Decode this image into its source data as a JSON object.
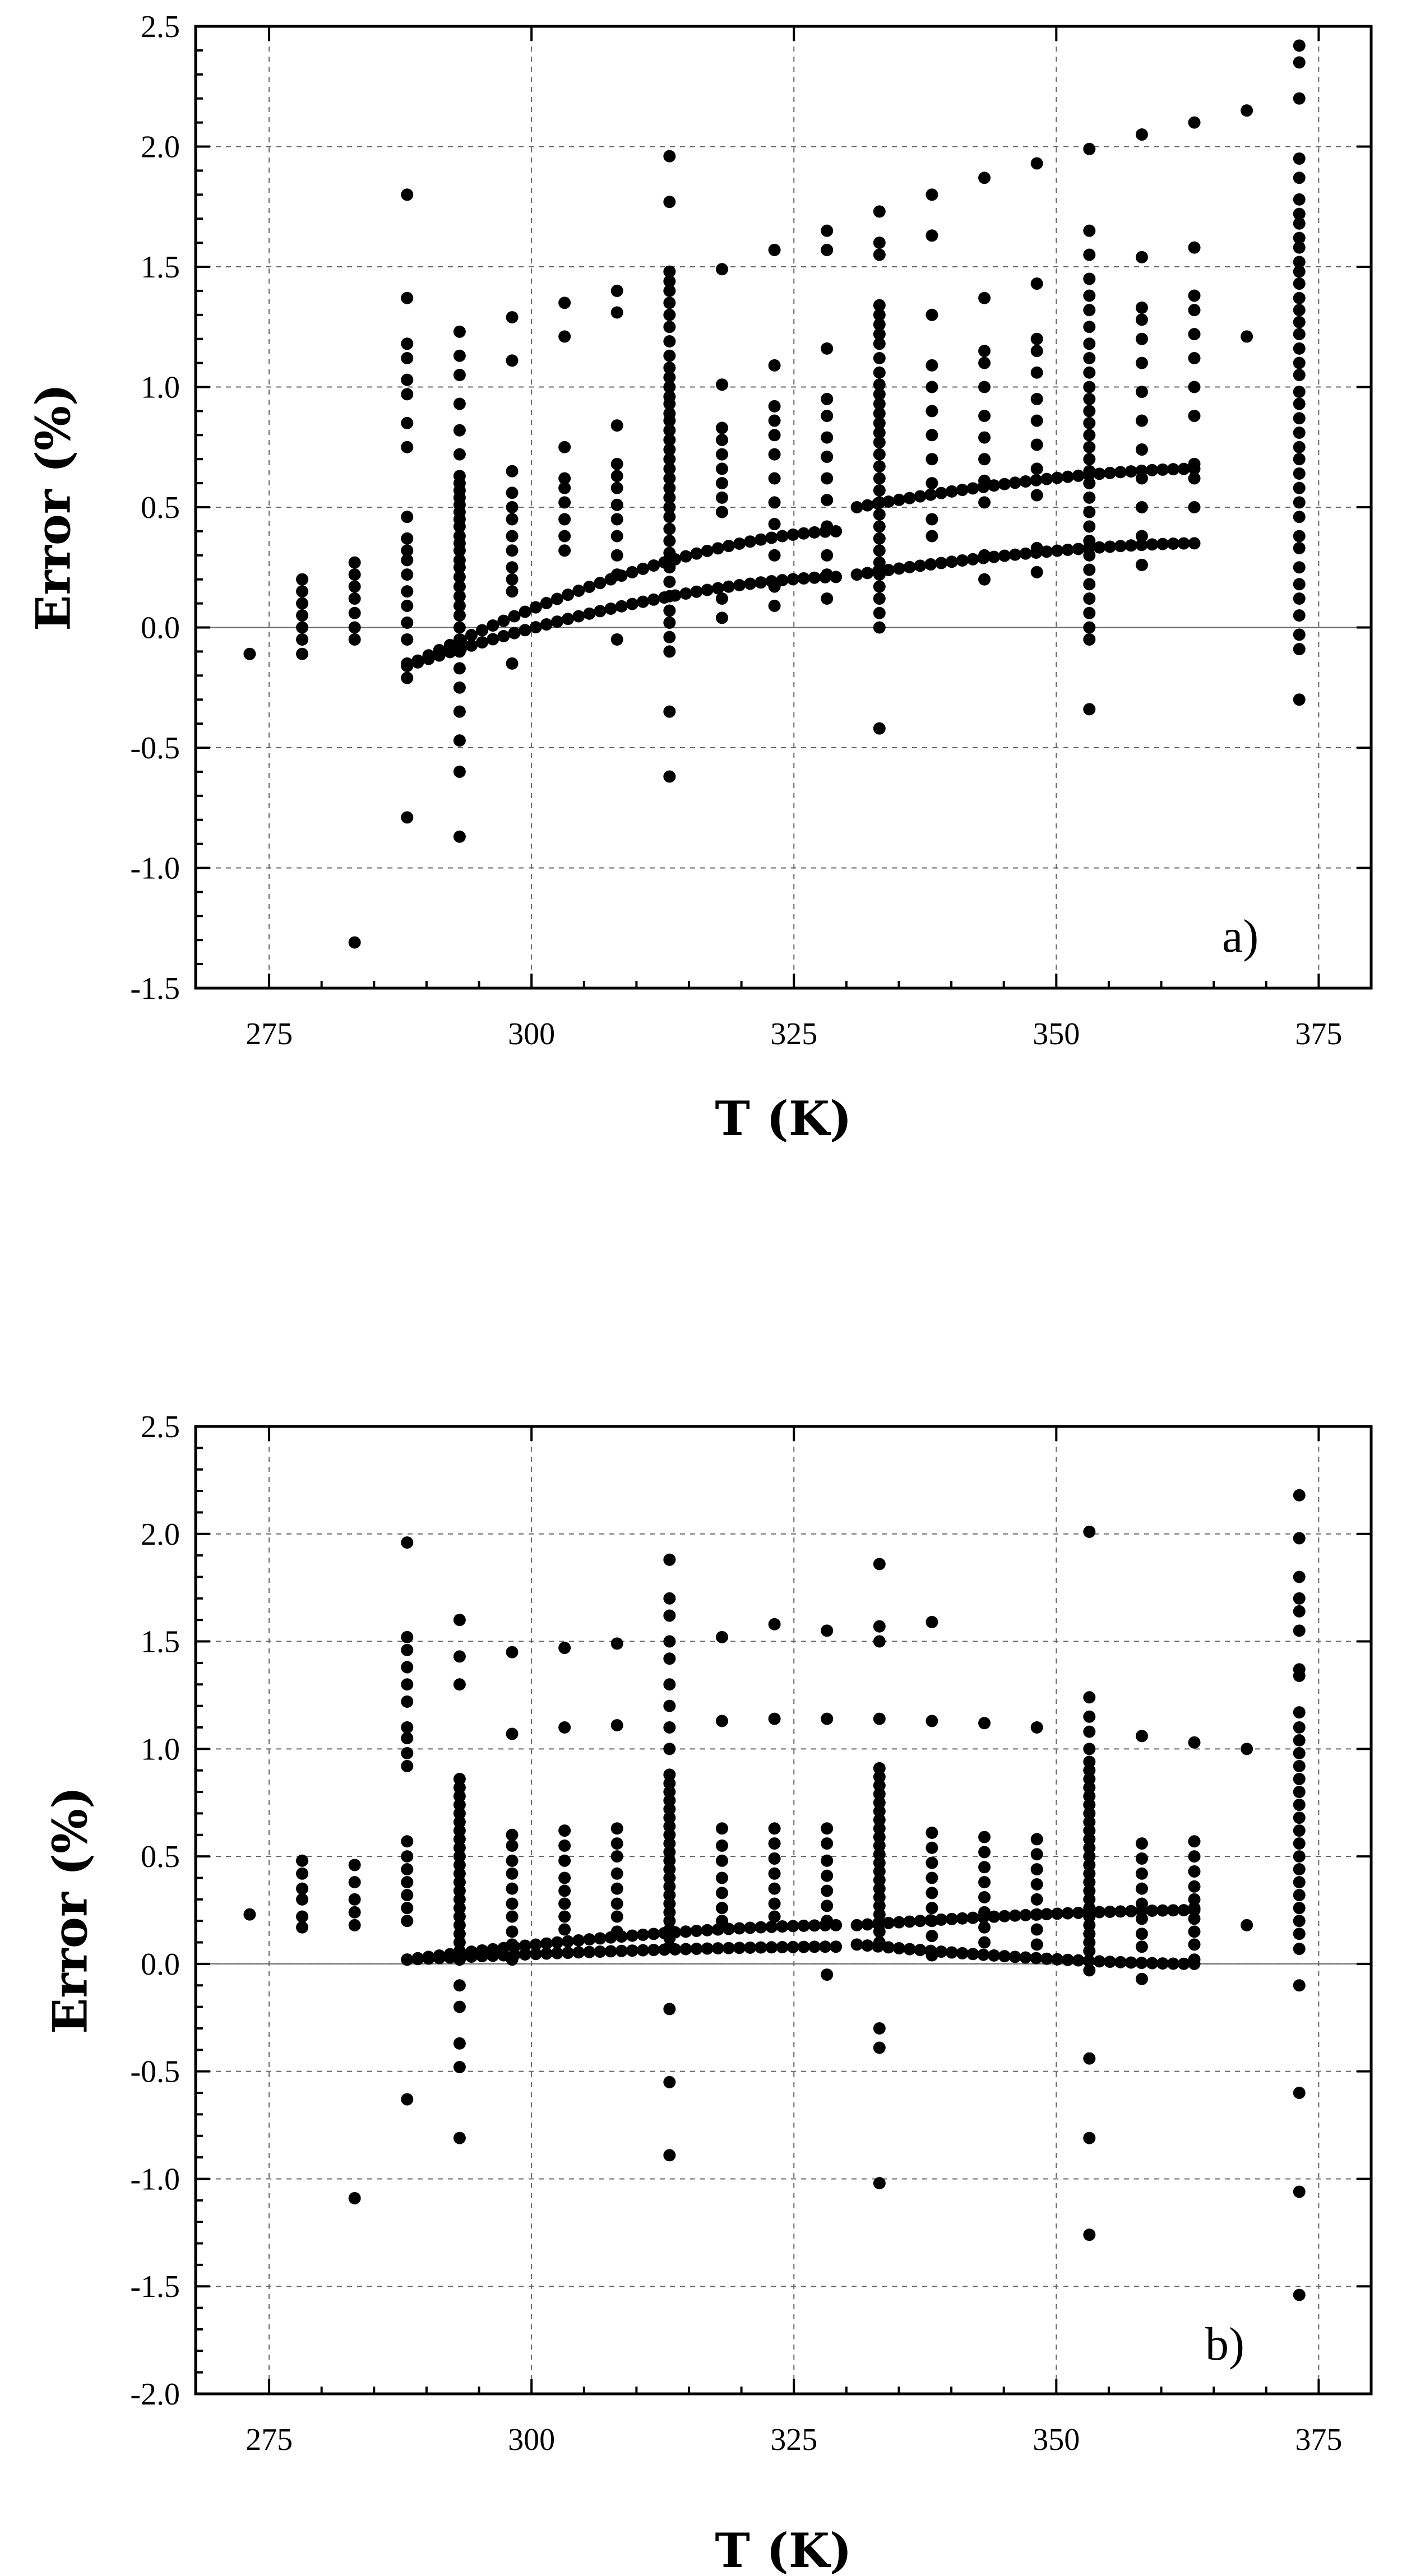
{
  "chart_data": [
    {
      "type": "scatter",
      "panel_label": "a)",
      "title": "",
      "xlabel": "T (K)",
      "ylabel": "Error (%)",
      "xlim": [
        268,
        380
      ],
      "ylim": [
        -1.5,
        2.5
      ],
      "xticks": [
        275,
        300,
        325,
        350,
        375
      ],
      "xtick_labels": [
        "275",
        "300",
        "325",
        "350",
        "375"
      ],
      "yticks": [
        -1.5,
        -1.0,
        -0.5,
        0.0,
        0.5,
        1.0,
        1.5,
        2.0,
        2.5
      ],
      "ytick_labels": [
        "-1.5",
        "-1.0",
        "-0.5",
        "0.0",
        "0.5",
        "1.0",
        "1.5",
        "2.0",
        "2.5"
      ],
      "grid": true,
      "zero_line": true,
      "columns": [
        {
          "x": 273.15,
          "y": [
            -0.11
          ]
        },
        {
          "x": 278.15,
          "y": [
            0.2,
            0.15,
            0.1,
            0.05,
            0.0,
            -0.05,
            -0.11
          ]
        },
        {
          "x": 283.15,
          "y": [
            0.27,
            0.22,
            0.17,
            0.12,
            0.06,
            0.0,
            -0.05,
            -1.31
          ]
        },
        {
          "x": 288.15,
          "y": [
            1.8,
            1.37,
            1.18,
            1.12,
            1.03,
            0.97,
            0.85,
            0.75,
            0.46,
            0.37,
            0.32,
            0.28,
            0.22,
            0.15,
            0.09,
            0.02,
            -0.05,
            -0.15,
            -0.21,
            -0.79
          ]
        },
        {
          "x": 293.15,
          "y": [
            1.23,
            1.13,
            1.05,
            0.93,
            0.82,
            0.72,
            0.63,
            0.6,
            0.57,
            0.54,
            0.51,
            0.48,
            0.45,
            0.42,
            0.38,
            0.35,
            0.32,
            0.28,
            0.25,
            0.21,
            0.17,
            0.13,
            0.09,
            0.05,
            0.0,
            -0.05,
            -0.1,
            -0.17,
            -0.25,
            -0.35,
            -0.47,
            -0.6,
            -0.87
          ]
        },
        {
          "x": 298.15,
          "y": [
            1.29,
            1.11,
            0.65,
            0.56,
            0.5,
            0.45,
            0.38,
            0.32,
            0.25,
            0.2,
            0.15,
            -0.15
          ]
        },
        {
          "x": 303.15,
          "y": [
            1.35,
            1.21,
            0.75,
            0.62,
            0.58,
            0.52,
            0.45,
            0.38,
            0.32
          ]
        },
        {
          "x": 308.15,
          "y": [
            1.4,
            1.31,
            0.84,
            0.68,
            0.63,
            0.58,
            0.51,
            0.45,
            0.38,
            0.3,
            0.22,
            -0.05
          ]
        },
        {
          "x": 313.15,
          "y": [
            1.96,
            1.77,
            1.48,
            1.44,
            1.4,
            1.35,
            1.3,
            1.25,
            1.19,
            1.13,
            1.08,
            1.04,
            1.0,
            0.96,
            0.93,
            0.89,
            0.86,
            0.82,
            0.78,
            0.74,
            0.7,
            0.66,
            0.62,
            0.58,
            0.54,
            0.5,
            0.46,
            0.41,
            0.36,
            0.31,
            0.25,
            0.19,
            0.13,
            0.07,
            0.02,
            -0.04,
            -0.1,
            -0.35,
            -0.62
          ]
        },
        {
          "x": 318.15,
          "y": [
            1.49,
            1.01,
            0.83,
            0.78,
            0.72,
            0.66,
            0.6,
            0.54,
            0.48,
            0.12,
            0.04
          ]
        },
        {
          "x": 323.15,
          "y": [
            1.57,
            1.09,
            0.92,
            0.86,
            0.8,
            0.72,
            0.62,
            0.52,
            0.43,
            0.3,
            0.17,
            0.09
          ]
        },
        {
          "x": 328.15,
          "y": [
            1.65,
            1.57,
            1.16,
            0.95,
            0.88,
            0.79,
            0.71,
            0.62,
            0.53,
            0.42,
            0.3,
            0.22,
            0.12
          ]
        },
        {
          "x": 333.15,
          "y": [
            1.73,
            1.6,
            1.55,
            1.34,
            1.3,
            1.26,
            1.22,
            1.18,
            1.12,
            1.06,
            1.01,
            0.97,
            0.93,
            0.89,
            0.85,
            0.81,
            0.77,
            0.72,
            0.67,
            0.62,
            0.57,
            0.52,
            0.47,
            0.42,
            0.37,
            0.32,
            0.27,
            0.22,
            0.17,
            0.12,
            0.06,
            0.0,
            -0.42
          ]
        },
        {
          "x": 338.15,
          "y": [
            1.8,
            1.63,
            1.3,
            1.09,
            1.0,
            0.9,
            0.8,
            0.7,
            0.6,
            0.45,
            0.38
          ]
        },
        {
          "x": 343.15,
          "y": [
            1.87,
            1.37,
            1.15,
            1.1,
            1.0,
            0.88,
            0.79,
            0.7,
            0.61,
            0.52,
            0.3,
            0.2
          ]
        },
        {
          "x": 348.15,
          "y": [
            1.93,
            1.43,
            1.2,
            1.15,
            1.06,
            0.95,
            0.86,
            0.76,
            0.66,
            0.55,
            0.33,
            0.23
          ]
        },
        {
          "x": 353.15,
          "y": [
            1.99,
            1.65,
            1.55,
            1.45,
            1.38,
            1.32,
            1.25,
            1.18,
            1.12,
            1.06,
            1.0,
            0.95,
            0.9,
            0.85,
            0.8,
            0.75,
            0.7,
            0.65,
            0.6,
            0.54,
            0.48,
            0.42,
            0.36,
            0.3,
            0.24,
            0.18,
            0.12,
            0.06,
            0.0,
            -0.05,
            -0.34
          ]
        },
        {
          "x": 358.15,
          "y": [
            2.05,
            1.54,
            1.33,
            1.28,
            1.2,
            1.1,
            0.98,
            0.86,
            0.74,
            0.62,
            0.5,
            0.38,
            0.26
          ]
        },
        {
          "x": 363.15,
          "y": [
            2.1,
            1.58,
            1.38,
            1.32,
            1.22,
            1.12,
            1.0,
            0.88,
            0.68,
            0.62,
            0.5
          ]
        },
        {
          "x": 368.15,
          "y": [
            2.15,
            1.21
          ]
        },
        {
          "x": 373.15,
          "y": [
            2.42,
            2.35,
            2.2,
            1.95,
            1.87,
            1.78,
            1.72,
            1.68,
            1.62,
            1.58,
            1.52,
            1.48,
            1.43,
            1.37,
            1.32,
            1.27,
            1.22,
            1.16,
            1.1,
            1.05,
            0.98,
            0.93,
            0.87,
            0.81,
            0.75,
            0.7,
            0.64,
            0.58,
            0.52,
            0.46,
            0.38,
            0.33,
            0.25,
            0.18,
            0.12,
            0.05,
            -0.03,
            -0.09,
            -0.3
          ]
        }
      ],
      "curves": [
        {
          "name": "upper-curve-1",
          "x_start": 288.15,
          "x_end": 329.0,
          "y_start": -0.16,
          "y_end": 0.4
        },
        {
          "name": "lower-curve-1",
          "x_start": 288.15,
          "x_end": 329.0,
          "y_start": -0.16,
          "y_end": 0.21
        },
        {
          "name": "upper-curve-2",
          "x_start": 331.0,
          "x_end": 363.15,
          "y_start": 0.5,
          "y_end": 0.66
        },
        {
          "name": "lower-curve-2",
          "x_start": 331.0,
          "x_end": 363.15,
          "y_start": 0.22,
          "y_end": 0.35
        }
      ]
    },
    {
      "type": "scatter",
      "panel_label": "b)",
      "title": "",
      "xlabel": "T (K)",
      "ylabel": "Error (%)",
      "xlim": [
        268,
        380
      ],
      "ylim": [
        -2.0,
        2.5
      ],
      "xticks": [
        275,
        300,
        325,
        350,
        375
      ],
      "xtick_labels": [
        "275",
        "300",
        "325",
        "350",
        "375"
      ],
      "yticks": [
        -2.0,
        -1.5,
        -1.0,
        -0.5,
        0.0,
        0.5,
        1.0,
        1.5,
        2.0,
        2.5
      ],
      "ytick_labels": [
        "-2.0",
        "-1.5",
        "-1.0",
        "-0.5",
        "0.0",
        "0.5",
        "1.0",
        "1.5",
        "2.0",
        "2.5"
      ],
      "grid": true,
      "zero_line": true,
      "columns": [
        {
          "x": 273.15,
          "y": [
            0.23
          ]
        },
        {
          "x": 278.15,
          "y": [
            0.48,
            0.42,
            0.35,
            0.3,
            0.22,
            0.17
          ]
        },
        {
          "x": 283.15,
          "y": [
            0.46,
            0.38,
            0.3,
            0.24,
            0.18,
            -1.09
          ]
        },
        {
          "x": 288.15,
          "y": [
            1.96,
            1.52,
            1.46,
            1.38,
            1.3,
            1.22,
            1.1,
            1.05,
            0.98,
            0.92,
            0.57,
            0.5,
            0.44,
            0.38,
            0.32,
            0.26,
            0.2,
            -0.63
          ]
        },
        {
          "x": 293.15,
          "y": [
            1.6,
            1.43,
            1.3,
            0.86,
            0.82,
            0.78,
            0.74,
            0.7,
            0.66,
            0.62,
            0.58,
            0.54,
            0.5,
            0.46,
            0.42,
            0.38,
            0.34,
            0.3,
            0.26,
            0.22,
            0.18,
            0.14,
            0.1,
            0.06,
            0.02,
            -0.1,
            -0.2,
            -0.37,
            -0.48,
            -0.81
          ]
        },
        {
          "x": 298.15,
          "y": [
            1.45,
            1.07,
            0.6,
            0.55,
            0.48,
            0.42,
            0.35,
            0.28,
            0.22,
            0.15,
            0.09,
            0.02
          ]
        },
        {
          "x": 303.15,
          "y": [
            1.47,
            1.1,
            0.62,
            0.55,
            0.48,
            0.4,
            0.34,
            0.28,
            0.22,
            0.16
          ]
        },
        {
          "x": 308.15,
          "y": [
            1.49,
            1.11,
            0.63,
            0.56,
            0.5,
            0.42,
            0.35,
            0.28,
            0.22,
            0.15
          ]
        },
        {
          "x": 313.15,
          "y": [
            1.88,
            1.7,
            1.62,
            1.5,
            1.42,
            1.3,
            1.2,
            1.1,
            1.0,
            0.88,
            0.84,
            0.8,
            0.76,
            0.72,
            0.68,
            0.64,
            0.6,
            0.56,
            0.52,
            0.48,
            0.44,
            0.4,
            0.36,
            0.32,
            0.28,
            0.24,
            0.2,
            0.16,
            0.12,
            0.08,
            -0.21,
            -0.55,
            -0.89
          ]
        },
        {
          "x": 318.15,
          "y": [
            1.52,
            1.13,
            0.63,
            0.55,
            0.48,
            0.4,
            0.33,
            0.26,
            0.2
          ]
        },
        {
          "x": 323.15,
          "y": [
            1.58,
            1.14,
            0.63,
            0.56,
            0.49,
            0.42,
            0.35,
            0.28,
            0.22
          ]
        },
        {
          "x": 328.15,
          "y": [
            1.55,
            1.14,
            0.63,
            0.56,
            0.48,
            0.41,
            0.34,
            0.27,
            0.2,
            -0.05
          ]
        },
        {
          "x": 333.15,
          "y": [
            1.86,
            1.57,
            1.5,
            1.14,
            0.91,
            0.87,
            0.83,
            0.79,
            0.75,
            0.71,
            0.67,
            0.63,
            0.59,
            0.55,
            0.51,
            0.47,
            0.43,
            0.39,
            0.35,
            0.31,
            0.27,
            0.23,
            0.19,
            0.15,
            0.1,
            -0.3,
            -0.39,
            -1.02
          ]
        },
        {
          "x": 338.15,
          "y": [
            1.59,
            1.13,
            0.61,
            0.54,
            0.47,
            0.4,
            0.33,
            0.26,
            0.2,
            0.13,
            0.04
          ]
        },
        {
          "x": 343.15,
          "y": [
            1.12,
            0.59,
            0.52,
            0.45,
            0.38,
            0.31,
            0.24,
            0.17,
            0.1
          ]
        },
        {
          "x": 348.15,
          "y": [
            1.1,
            0.58,
            0.51,
            0.44,
            0.37,
            0.3,
            0.23,
            0.16,
            0.09
          ]
        },
        {
          "x": 353.15,
          "y": [
            2.01,
            1.24,
            1.15,
            1.08,
            1.0,
            0.94,
            0.9,
            0.86,
            0.82,
            0.78,
            0.74,
            0.7,
            0.66,
            0.62,
            0.58,
            0.54,
            0.5,
            0.46,
            0.42,
            0.38,
            0.34,
            0.3,
            0.26,
            0.22,
            0.18,
            0.14,
            0.1,
            0.06,
            -0.03,
            -0.44,
            -0.81,
            -1.26
          ]
        },
        {
          "x": 358.15,
          "y": [
            1.06,
            0.56,
            0.49,
            0.42,
            0.35,
            0.28,
            0.21,
            0.14,
            0.08,
            -0.07
          ]
        },
        {
          "x": 363.15,
          "y": [
            1.03,
            0.57,
            0.5,
            0.43,
            0.36,
            0.3,
            0.26,
            0.21,
            0.15,
            0.09,
            0.02
          ]
        },
        {
          "x": 368.15,
          "y": [
            1.0,
            0.18
          ]
        },
        {
          "x": 373.15,
          "y": [
            2.18,
            1.98,
            1.8,
            1.7,
            1.64,
            1.55,
            1.37,
            1.34,
            1.17,
            1.1,
            1.04,
            0.98,
            0.92,
            0.86,
            0.8,
            0.74,
            0.68,
            0.62,
            0.56,
            0.5,
            0.44,
            0.38,
            0.32,
            0.26,
            0.2,
            0.14,
            0.07,
            -0.1,
            -0.6,
            -1.06,
            -1.54
          ]
        }
      ],
      "curves": [
        {
          "name": "upper-curve-1",
          "x_start": 288.15,
          "x_end": 329.0,
          "y_start": 0.02,
          "y_end": 0.18
        },
        {
          "name": "lower-curve-1",
          "x_start": 288.15,
          "x_end": 329.0,
          "y_start": 0.02,
          "y_end": 0.08
        },
        {
          "name": "upper-curve-2",
          "x_start": 331.0,
          "x_end": 363.15,
          "y_start": 0.18,
          "y_end": 0.25
        },
        {
          "name": "lower-curve-2",
          "x_start": 331.0,
          "x_end": 363.15,
          "y_start": 0.09,
          "y_end": 0.0
        }
      ]
    }
  ]
}
